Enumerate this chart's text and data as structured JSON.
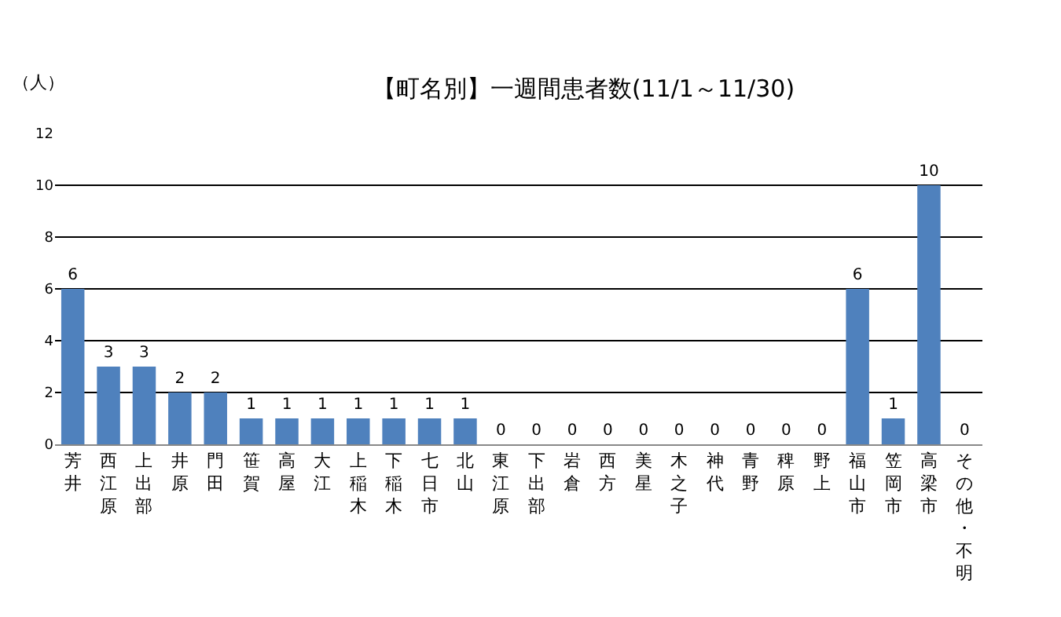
{
  "chart_data": {
    "type": "bar",
    "title": "【町名別】一週間患者数(11/1～11/30)",
    "ylabel": "（人）",
    "categories": [
      "芳井",
      "西江原",
      "上出部",
      "井原",
      "門田",
      "笹賀",
      "高屋",
      "大江",
      "上稲木",
      "下稲木",
      "七日市",
      "北山",
      "東江原",
      "下出部",
      "岩倉",
      "西方",
      "美星",
      "木之子",
      "神代",
      "青野",
      "稗原",
      "野上",
      "福山市",
      "笠岡市",
      "高梁市",
      "その他・不明"
    ],
    "values": [
      6,
      3,
      3,
      2,
      2,
      1,
      1,
      1,
      1,
      1,
      1,
      1,
      0,
      0,
      0,
      0,
      0,
      0,
      0,
      0,
      0,
      0,
      6,
      1,
      10,
      0
    ],
    "color": "#4f81bd",
    "ylim": [
      0,
      12
    ],
    "yticks": [
      0,
      2,
      4,
      6,
      8,
      10,
      12
    ],
    "grid": "y",
    "data_labels": true,
    "legend": false
  }
}
